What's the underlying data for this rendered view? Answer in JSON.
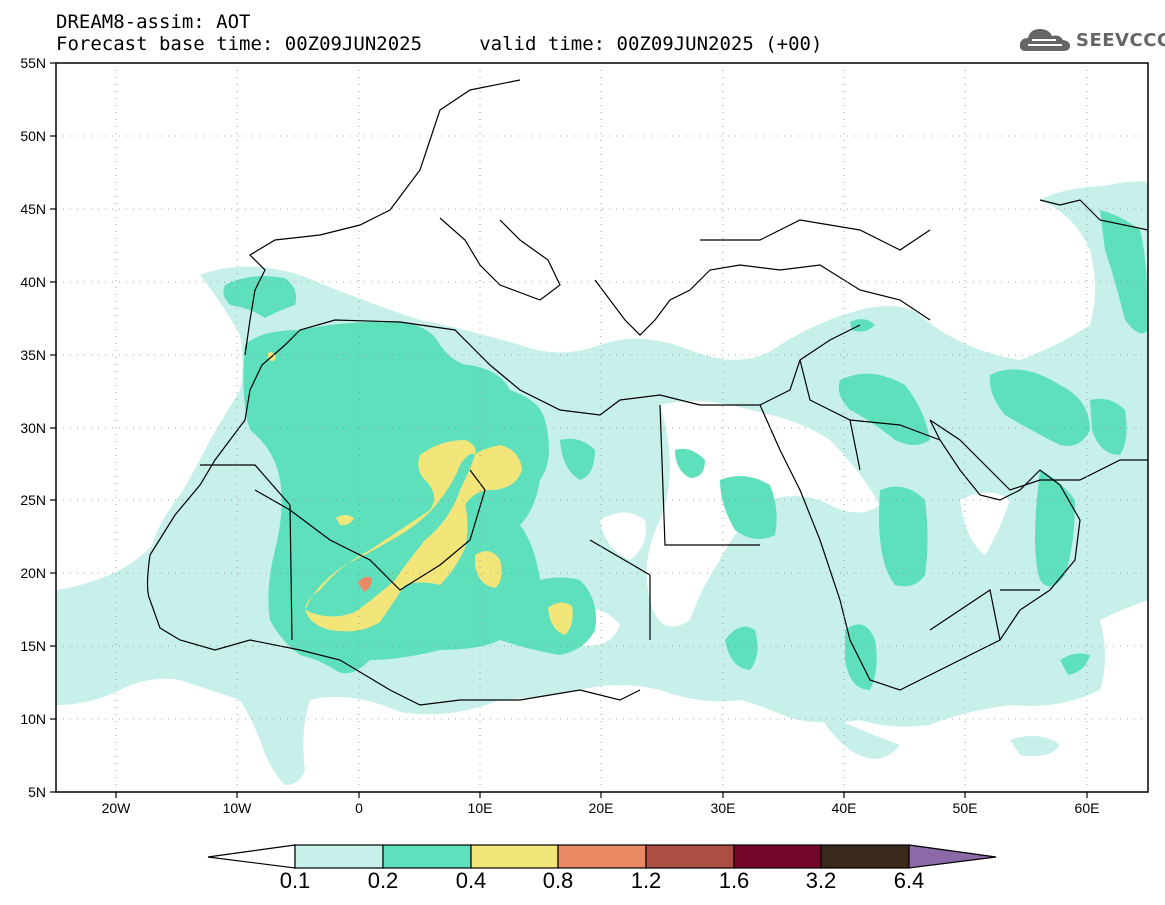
{
  "title": {
    "line1": "DREAM8-assim: AOT",
    "line2": "Forecast base time: 00Z09JUN2025     valid time: 00Z09JUN2025 (+00)"
  },
  "logo": {
    "text": "SEEVCCC",
    "icon": "cloud-icon"
  },
  "map": {
    "lat_range": [
      5,
      55
    ],
    "lon_range": [
      -25,
      65
    ],
    "lat_labels": [
      "55N",
      "50N",
      "45N",
      "40N",
      "35N",
      "30N",
      "25N",
      "20N",
      "15N",
      "10N",
      "5N"
    ],
    "lon_labels": [
      "20W",
      "10W",
      "0",
      "10E",
      "20E",
      "30E",
      "40E",
      "50E",
      "60E"
    ],
    "variable": "AOT"
  },
  "colorbar": {
    "levels": [
      "0.1",
      "0.2",
      "0.4",
      "0.8",
      "1.2",
      "1.6",
      "3.2",
      "6.4"
    ],
    "colors": [
      "#c8f0ea",
      "#5fe0bd",
      "#f2e67a",
      "#e98a65",
      "#ad4e44",
      "#76052a",
      "#3a2a1c",
      "#8c6aa8"
    ],
    "under_color": "#ffffff"
  }
}
